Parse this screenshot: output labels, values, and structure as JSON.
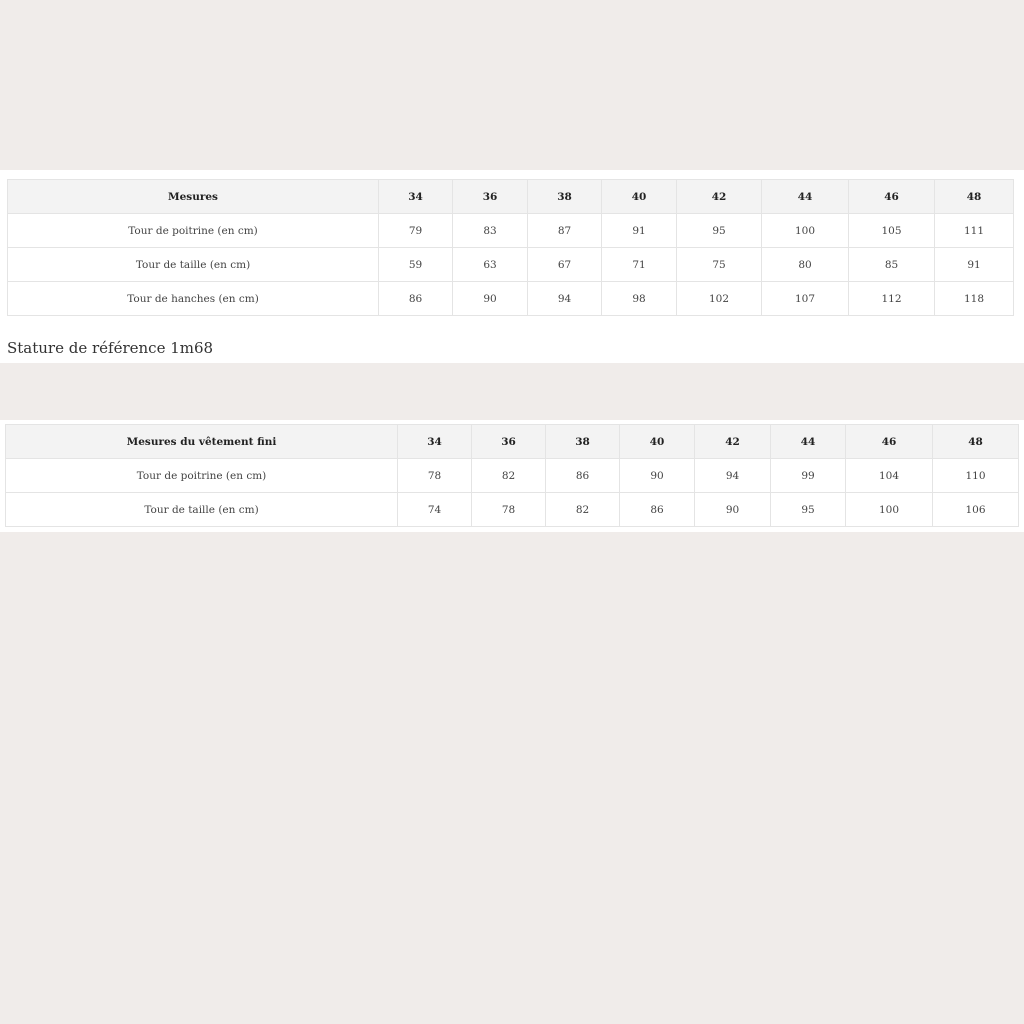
{
  "table1": {
    "header": [
      "Mesures",
      "34",
      "36",
      "38",
      "40",
      "42",
      "44",
      "46",
      "48"
    ],
    "rows": [
      [
        "Tour de poitrine (en cm)",
        "79",
        "83",
        "87",
        "91",
        "95",
        "100",
        "105",
        "111"
      ],
      [
        "Tour de taille (en cm)",
        "59",
        "63",
        "67",
        "71",
        "75",
        "80",
        "85",
        "91"
      ],
      [
        "Tour de hanches (en cm)",
        "86",
        "90",
        "94",
        "98",
        "102",
        "107",
        "112",
        "118"
      ]
    ]
  },
  "note": "Stature de référence 1m68",
  "table2": {
    "header": [
      "Mesures du vêtement fini",
      "34",
      "36",
      "38",
      "40",
      "42",
      "44",
      "46",
      "48"
    ],
    "rows": [
      [
        "Tour de poitrine (en cm)",
        "78",
        "82",
        "86",
        "90",
        "94",
        "99",
        "104",
        "110"
      ],
      [
        "Tour de taille (en cm)",
        "74",
        "78",
        "82",
        "86",
        "90",
        "95",
        "100",
        "106"
      ]
    ]
  }
}
